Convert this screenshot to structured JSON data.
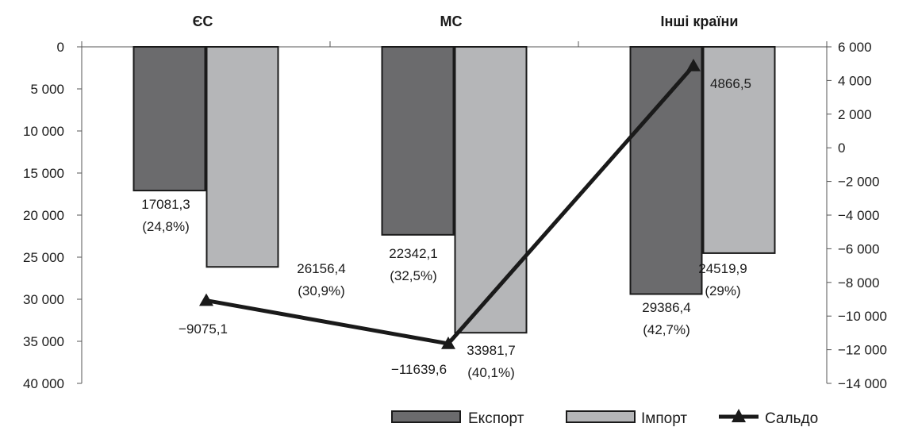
{
  "chart_data": {
    "type": "bar",
    "categories": [
      "ЄС",
      "МС",
      "Інші країни"
    ],
    "series": [
      {
        "name": "Експорт",
        "axis": "left",
        "values": [
          17081.3,
          22342.1,
          29386.4
        ],
        "labels": [
          "17081,3",
          "22342,1",
          "29386,4"
        ],
        "shares": [
          "(24,8%)",
          "(32,5%)",
          "(42,7%)"
        ],
        "color": "#6b6b6d"
      },
      {
        "name": "Імпорт",
        "axis": "left",
        "values": [
          26156.4,
          33981.7,
          24519.9
        ],
        "labels": [
          "26156,4",
          "33981,7",
          "24519,9"
        ],
        "shares": [
          "(30,9%)",
          "(40,1%)",
          "(29%)"
        ],
        "color": "#b5b6b8"
      },
      {
        "name": "Сальдо",
        "type": "line",
        "axis": "right",
        "marker": "triangle",
        "values": [
          -9075.1,
          -11639.6,
          4866.5
        ],
        "labels": [
          "−9075,1",
          "−11639,6",
          "4866,5"
        ],
        "color": "#1a1a1a"
      }
    ],
    "left_axis": {
      "reversed": true,
      "ylim": [
        0,
        40000
      ],
      "ticks": [
        0,
        5000,
        10000,
        15000,
        20000,
        25000,
        30000,
        35000,
        40000
      ],
      "tick_labels": [
        "0",
        "5 000",
        "10 000",
        "15 000",
        "20 000",
        "25 000",
        "30 000",
        "35 000",
        "40 000"
      ]
    },
    "right_axis": {
      "ylim": [
        -14000,
        6000
      ],
      "ticks": [
        6000,
        4000,
        2000,
        0,
        -2000,
        -4000,
        -6000,
        -8000,
        -10000,
        -12000,
        -14000
      ],
      "tick_labels": [
        "6 000",
        "4 000",
        "2 000",
        "0",
        "−2 000",
        "−4 000",
        "−6 000",
        "−8 000",
        "−10 000",
        "−12 000",
        "−14 000"
      ]
    },
    "grid": false,
    "legend": "bottom-right"
  }
}
